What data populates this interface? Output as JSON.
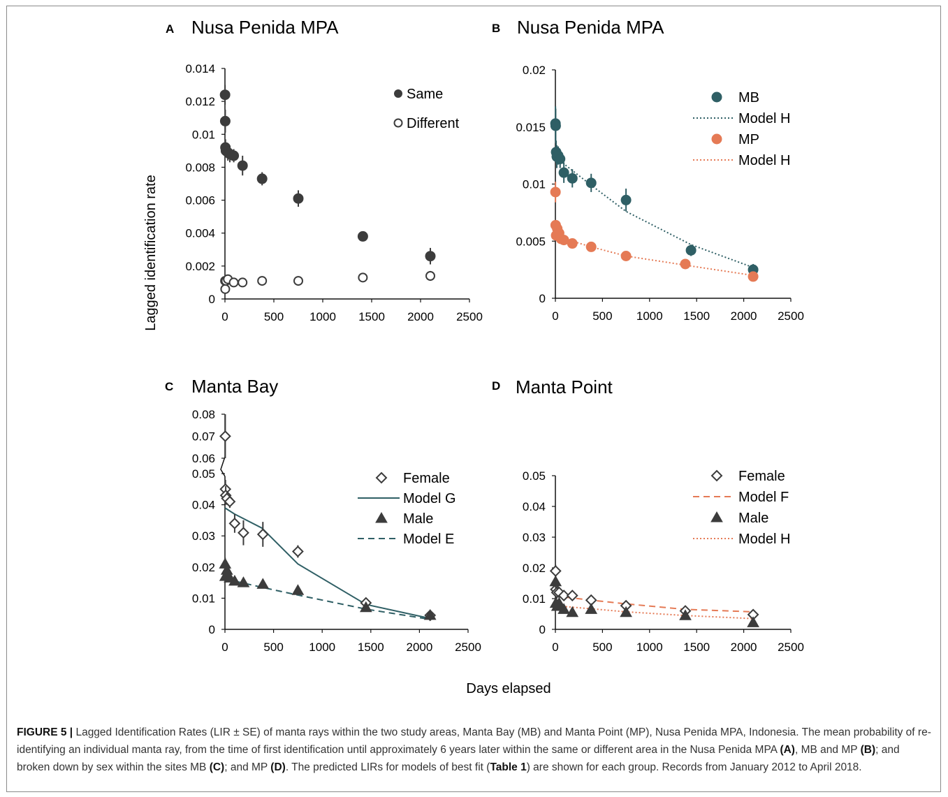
{
  "figure": {
    "xlabel": "Days elapsed",
    "ylabel": "Lagged identification rate",
    "caption": {
      "label": "FIGURE 5 |",
      "t1": " Lagged Identification Rates (LIR ± SE) of manta rays within the two study areas, Manta Bay (MB) and Manta Point (MP), Nusa Penida MPA, Indonesia. The mean probability of re-identifying an individual manta ray, from the time of first identification until approximately 6 years later within the same or different area in the Nusa Penida MPA ",
      "a": "(A)",
      "t2": ", MB and MP ",
      "b": "(B)",
      "t3": "; and broken down by sex within the sites MB ",
      "c": "(C)",
      "t4": "; and MP ",
      "d": "(D)",
      "t5": ". The predicted LIRs for models of best fit (",
      "table": "Table 1",
      "t6": ") are shown for each group. Records from January 2012 to April 2018."
    }
  },
  "colors": {
    "dark": "#3c3c3c",
    "teal": "#2f5f65",
    "orange": "#e57a55",
    "axis": "#111111"
  },
  "chart_data": [
    {
      "panel": "A",
      "title": "Nusa Penida MPA",
      "type": "scatter",
      "xlim": [
        0,
        2500
      ],
      "ylim": [
        0,
        0.014
      ],
      "xticks": [
        0,
        500,
        1000,
        1500,
        2000,
        2500
      ],
      "yticks": [
        0,
        0.002,
        0.004,
        0.006,
        0.008,
        0.01,
        0.012,
        0.014
      ],
      "ytick_labels": [
        "0",
        "0.002",
        "0.004",
        "0.006",
        "0.008",
        "0.01",
        "0.012",
        "0.014"
      ],
      "series": [
        {
          "name": "Same",
          "marker": "circle-filled",
          "color": "#3c3c3c",
          "points": [
            [
              1,
              0.0124,
              0.0006
            ],
            [
              3,
              0.0108,
              0.0007
            ],
            [
              5,
              0.0092,
              0.0005
            ],
            [
              10,
              0.009,
              0.0004
            ],
            [
              30,
              0.0089,
              0.0005
            ],
            [
              50,
              0.0088,
              0.0005
            ],
            [
              90,
              0.0087,
              0.0004
            ],
            [
              180,
              0.0081,
              0.0006
            ],
            [
              380,
              0.0073,
              0.0004
            ],
            [
              750,
              0.0061,
              0.0005
            ],
            [
              1410,
              0.0038,
              0.0002
            ],
            [
              2100,
              0.0026,
              0.0005
            ]
          ]
        },
        {
          "name": "Different",
          "marker": "circle-open",
          "color": "#3c3c3c",
          "points": [
            [
              1,
              0.0011,
              0.0002
            ],
            [
              3,
              0.0006,
              0.0003
            ],
            [
              10,
              0.0011,
              0.0001
            ],
            [
              30,
              0.0012,
              0.0001
            ],
            [
              90,
              0.001,
              0.0001
            ],
            [
              180,
              0.001,
              0.0001
            ],
            [
              380,
              0.0011,
              0.0001
            ],
            [
              750,
              0.0011,
              0.0001
            ],
            [
              1410,
              0.0013,
              0.0001
            ],
            [
              2100,
              0.0014,
              0.0003
            ]
          ]
        }
      ],
      "legend": [
        {
          "label": "Same",
          "kind": "circle-filled",
          "color": "#3c3c3c"
        },
        {
          "label": "Different",
          "kind": "circle-open",
          "color": "#3c3c3c"
        }
      ]
    },
    {
      "panel": "B",
      "title": "Nusa Penida MPA",
      "type": "scatter",
      "xlim": [
        0,
        2500
      ],
      "ylim": [
        0,
        0.02
      ],
      "xticks": [
        0,
        500,
        1000,
        1500,
        2000,
        2500
      ],
      "yticks": [
        0,
        0.005,
        0.01,
        0.015,
        0.02
      ],
      "ytick_labels": [
        "0",
        "0.005",
        "0.01",
        "0.015",
        "0.02"
      ],
      "series": [
        {
          "name": "MB",
          "marker": "circle-filled",
          "color": "#2f5f65",
          "points": [
            [
              1,
              0.0153,
              0.0015
            ],
            [
              3,
              0.0151,
              0.0015
            ],
            [
              8,
              0.0128,
              0.001
            ],
            [
              15,
              0.0124,
              0.001
            ],
            [
              30,
              0.0125,
              0.0008
            ],
            [
              50,
              0.0122,
              0.0008
            ],
            [
              90,
              0.011,
              0.0009
            ],
            [
              180,
              0.0105,
              0.0008
            ],
            [
              380,
              0.0101,
              0.0008
            ],
            [
              750,
              0.0086,
              0.001
            ],
            [
              1440,
              0.0042,
              0.0005
            ],
            [
              2100,
              0.0025,
              0.0005
            ]
          ]
        },
        {
          "name": "MP",
          "marker": "circle-filled",
          "color": "#e57a55",
          "points": [
            [
              1,
              0.0093,
              0.0009
            ],
            [
              3,
              0.0064,
              0.0004
            ],
            [
              8,
              0.0055,
              0.0004
            ],
            [
              20,
              0.0061,
              0.0003
            ],
            [
              40,
              0.0057,
              0.0003
            ],
            [
              60,
              0.0052,
              0.0003
            ],
            [
              90,
              0.0051,
              0.0003
            ],
            [
              180,
              0.0048,
              0.0003
            ],
            [
              380,
              0.0045,
              0.0003
            ],
            [
              750,
              0.0037,
              0.0002
            ],
            [
              1380,
              0.003,
              0.0002
            ],
            [
              2100,
              0.0019,
              0.0004
            ]
          ]
        },
        {
          "name": "Model H",
          "marker": "line-dotted",
          "color": "#2f5f65",
          "line": [
            [
              0,
              0.0125
            ],
            [
              100,
              0.0117
            ],
            [
              380,
              0.0099
            ],
            [
              750,
              0.0076
            ],
            [
              1440,
              0.0047
            ],
            [
              2100,
              0.0027
            ]
          ]
        },
        {
          "name": "Model H",
          "marker": "line-dotted",
          "color": "#e57a55",
          "line": [
            [
              0,
              0.0058
            ],
            [
              100,
              0.0052
            ],
            [
              380,
              0.0045
            ],
            [
              750,
              0.0037
            ],
            [
              1380,
              0.0029
            ],
            [
              2100,
              0.002
            ]
          ]
        }
      ],
      "legend": [
        {
          "label": "MB",
          "kind": "circle-filled",
          "color": "#2f5f65"
        },
        {
          "label": "Model H",
          "kind": "line-dotted",
          "color": "#2f5f65"
        },
        {
          "label": "MP",
          "kind": "circle-filled",
          "color": "#e57a55"
        },
        {
          "label": "Model H",
          "kind": "line-dotted",
          "color": "#e57a55"
        }
      ]
    },
    {
      "panel": "C",
      "title": "Manta Bay",
      "type": "scatter",
      "xlim": [
        0,
        2500
      ],
      "ylim": [
        0,
        0.08
      ],
      "axis_break": [
        0.05,
        0.06
      ],
      "xticks": [
        0,
        500,
        1000,
        1500,
        2000,
        2500
      ],
      "yticks": [
        0,
        0.01,
        0.02,
        0.03,
        0.04,
        0.05,
        0.06,
        0.07,
        0.08
      ],
      "ytick_labels": [
        "0",
        "0.01",
        "0.02",
        "0.03",
        "0.04",
        "0.05",
        "0.06",
        "0.07",
        "0.08"
      ],
      "series": [
        {
          "name": "Female",
          "marker": "diamond-open",
          "color": "#3c3c3c",
          "points": [
            [
              3,
              0.07,
              0.01
            ],
            [
              5,
              0.045,
              0.003
            ],
            [
              8,
              0.043,
              0.003
            ],
            [
              20,
              0.042,
              0.002
            ],
            [
              50,
              0.041,
              0.002
            ],
            [
              100,
              0.034,
              0.003
            ],
            [
              190,
              0.031,
              0.004
            ],
            [
              390,
              0.0305,
              0.004
            ],
            [
              750,
              0.025,
              0.002
            ],
            [
              1450,
              0.0085,
              0.001
            ],
            [
              2110,
              0.0045,
              0.001
            ]
          ]
        },
        {
          "name": "Male",
          "marker": "triangle-filled",
          "color": "#3c3c3c",
          "points": [
            [
              2,
              0.021,
              0.002
            ],
            [
              5,
              0.017,
              0.002
            ],
            [
              20,
              0.019,
              0.002
            ],
            [
              50,
              0.0165,
              0.001
            ],
            [
              100,
              0.0155,
              0.001
            ],
            [
              190,
              0.015,
              0.001
            ],
            [
              390,
              0.0145,
              0.001
            ],
            [
              750,
              0.0125,
              0.001
            ],
            [
              1450,
              0.007,
              0.001
            ],
            [
              2110,
              0.0045,
              0.001
            ]
          ]
        },
        {
          "name": "Model G",
          "marker": "line-solid",
          "color": "#2f5f65",
          "line": [
            [
              0,
              0.039
            ],
            [
              100,
              0.037
            ],
            [
              380,
              0.0325
            ],
            [
              750,
              0.021
            ],
            [
              1450,
              0.008
            ],
            [
              2110,
              0.0035
            ]
          ]
        },
        {
          "name": "Model E",
          "marker": "line-dashed",
          "color": "#2f5f65",
          "line": [
            [
              0,
              0.0165
            ],
            [
              100,
              0.0155
            ],
            [
              380,
              0.0135
            ],
            [
              750,
              0.011
            ],
            [
              1450,
              0.0065
            ],
            [
              2110,
              0.0032
            ]
          ]
        }
      ],
      "legend": [
        {
          "label": "Female",
          "kind": "diamond-open",
          "color": "#3c3c3c"
        },
        {
          "label": "Model G",
          "kind": "line-solid",
          "color": "#2f5f65"
        },
        {
          "label": "Male",
          "kind": "triangle-filled",
          "color": "#3c3c3c"
        },
        {
          "label": "Model E",
          "kind": "line-dashed",
          "color": "#2f5f65"
        }
      ]
    },
    {
      "panel": "D",
      "title": "Manta Point",
      "type": "scatter",
      "xlim": [
        0,
        2500
      ],
      "ylim": [
        0,
        0.05
      ],
      "xticks": [
        0,
        500,
        1000,
        1500,
        2000,
        2500
      ],
      "yticks": [
        0,
        0.01,
        0.02,
        0.03,
        0.04,
        0.05
      ],
      "ytick_labels": [
        "0",
        "0.01",
        "0.02",
        "0.03",
        "0.04",
        "0.05"
      ],
      "series": [
        {
          "name": "Female",
          "marker": "diamond-open",
          "color": "#3c3c3c",
          "points": [
            [
              2,
              0.019,
              0.002
            ],
            [
              5,
              0.013,
              0.002
            ],
            [
              15,
              0.012,
              0.002
            ],
            [
              40,
              0.012,
              0.001
            ],
            [
              90,
              0.011,
              0.001
            ],
            [
              180,
              0.011,
              0.001
            ],
            [
              380,
              0.0095,
              0.001
            ],
            [
              750,
              0.0077,
              0.001
            ],
            [
              1380,
              0.006,
              0.0008
            ],
            [
              2100,
              0.0048,
              0.0008
            ]
          ]
        },
        {
          "name": "Male",
          "marker": "triangle-filled",
          "color": "#3c3c3c",
          "points": [
            [
              2,
              0.0155,
              0.002
            ],
            [
              5,
              0.0085,
              0.001
            ],
            [
              20,
              0.0075,
              0.001
            ],
            [
              40,
              0.0085,
              0.001
            ],
            [
              90,
              0.0065,
              0.001
            ],
            [
              180,
              0.0055,
              0.001
            ],
            [
              380,
              0.0065,
              0.001
            ],
            [
              750,
              0.0055,
              0.001
            ],
            [
              1380,
              0.0045,
              0.001
            ],
            [
              2100,
              0.0022,
              0.001
            ]
          ]
        },
        {
          "name": "Model F",
          "marker": "line-dashed",
          "color": "#e57a55",
          "line": [
            [
              0,
              0.011
            ],
            [
              100,
              0.0105
            ],
            [
              380,
              0.0095
            ],
            [
              750,
              0.0083
            ],
            [
              1380,
              0.0065
            ],
            [
              2100,
              0.0057
            ]
          ]
        },
        {
          "name": "Model H",
          "marker": "line-dotted",
          "color": "#e57a55",
          "line": [
            [
              0,
              0.0078
            ],
            [
              100,
              0.0074
            ],
            [
              380,
              0.0067
            ],
            [
              750,
              0.0057
            ],
            [
              1380,
              0.0045
            ],
            [
              2100,
              0.0035
            ]
          ]
        }
      ],
      "legend": [
        {
          "label": "Female",
          "kind": "diamond-open",
          "color": "#3c3c3c"
        },
        {
          "label": "Model F",
          "kind": "line-dashed",
          "color": "#e57a55"
        },
        {
          "label": "Male",
          "kind": "triangle-filled",
          "color": "#3c3c3c"
        },
        {
          "label": "Model H",
          "kind": "line-dotted",
          "color": "#e57a55"
        }
      ]
    }
  ]
}
